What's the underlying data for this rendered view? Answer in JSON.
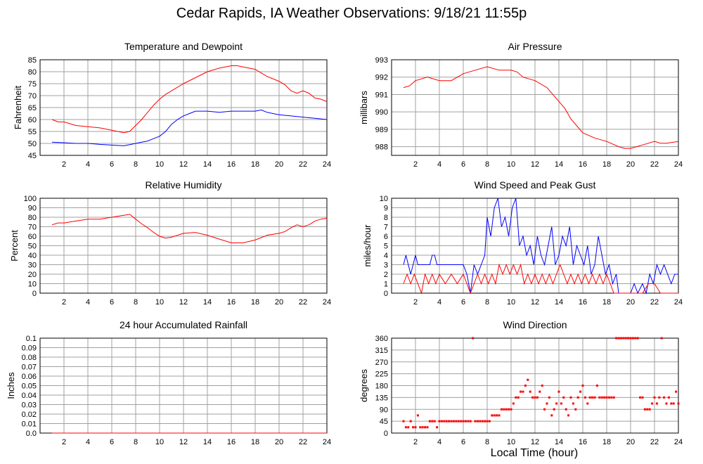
{
  "page": {
    "title": "Cedar Rapids, IA Weather Observations: 9/18/21 11:55p",
    "x_axis_label": "Local Time (hour)"
  },
  "colors": {
    "red": "#ff0000",
    "blue": "#0000ff",
    "grid": "#a0a0a0"
  },
  "chart_data": [
    {
      "id": "temp",
      "type": "line",
      "title": "Temperature and Dewpoint",
      "ylabel": "Fahrenheit",
      "xlim": [
        0,
        24
      ],
      "ylim": [
        45,
        85
      ],
      "xticks": [
        2,
        4,
        6,
        8,
        10,
        12,
        14,
        16,
        18,
        20,
        22,
        24
      ],
      "yticks": [
        45,
        50,
        55,
        60,
        65,
        70,
        75,
        80,
        85
      ],
      "series": [
        {
          "color": "#ff0000",
          "x": [
            1,
            1.5,
            2,
            3,
            4,
            5,
            6,
            7,
            7.5,
            8,
            8.5,
            9,
            9.5,
            10,
            10.5,
            11,
            12,
            13,
            14,
            15,
            16,
            16.5,
            17,
            18,
            18.5,
            19,
            20,
            20.5,
            21,
            21.5,
            22,
            22.5,
            23,
            23.5,
            24
          ],
          "y": [
            60,
            59,
            59,
            57.5,
            57,
            56.5,
            55.5,
            54.5,
            55,
            57.5,
            60,
            63,
            66,
            68.5,
            70.5,
            72,
            75,
            77.5,
            80,
            81.5,
            82.5,
            82.5,
            82,
            81,
            79.5,
            78,
            76,
            74.5,
            72,
            71,
            72,
            71,
            69,
            68.5,
            67.5
          ]
        },
        {
          "color": "#0000ff",
          "x": [
            1,
            2,
            3,
            4,
            5,
            6,
            7,
            7.5,
            8,
            8.5,
            9,
            9.5,
            10,
            10.5,
            11,
            11.5,
            12,
            12.5,
            13,
            14,
            15,
            16,
            17,
            18,
            18.5,
            19,
            20,
            21,
            22,
            23,
            24
          ],
          "y": [
            50.5,
            50.3,
            50,
            50,
            49.6,
            49.3,
            49,
            49.5,
            50,
            50.5,
            51,
            52,
            53,
            55,
            58,
            60,
            61.5,
            62.5,
            63.5,
            63.5,
            63,
            63.5,
            63.5,
            63.5,
            64,
            63,
            62,
            61.5,
            61,
            60.5,
            60
          ]
        }
      ]
    },
    {
      "id": "pressure",
      "type": "line",
      "title": "Air Pressure",
      "ylabel": "millibars",
      "xlim": [
        0,
        24
      ],
      "ylim": [
        987.5,
        993
      ],
      "xticks": [
        2,
        4,
        6,
        8,
        10,
        12,
        14,
        16,
        18,
        20,
        22,
        24
      ],
      "yticks": [
        988,
        989,
        990,
        991,
        992,
        993
      ],
      "series": [
        {
          "color": "#ff0000",
          "x": [
            1,
            1.5,
            2,
            3,
            4,
            5,
            6,
            7,
            8,
            9,
            10,
            10.5,
            11,
            12,
            13,
            14,
            14.5,
            15,
            15.5,
            16,
            17,
            18,
            19,
            19.5,
            20,
            20.5,
            21,
            22,
            22.5,
            23,
            24
          ],
          "y": [
            991.4,
            991.5,
            991.8,
            992,
            991.8,
            991.8,
            992.2,
            992.4,
            992.6,
            992.4,
            992.4,
            992.3,
            992,
            991.8,
            991.4,
            990.6,
            990.2,
            989.6,
            989.2,
            988.8,
            988.5,
            988.3,
            988,
            987.9,
            987.9,
            988,
            988.1,
            988.3,
            988.2,
            988.2,
            988.3
          ]
        }
      ]
    },
    {
      "id": "humidity",
      "type": "line",
      "title": "Relative Humidity",
      "ylabel": "Percent",
      "xlim": [
        0,
        24
      ],
      "ylim": [
        0,
        100
      ],
      "xticks": [
        2,
        4,
        6,
        8,
        10,
        12,
        14,
        16,
        18,
        20,
        22,
        24
      ],
      "yticks": [
        0,
        10,
        20,
        30,
        40,
        50,
        60,
        70,
        80,
        90,
        100
      ],
      "series": [
        {
          "color": "#ff0000",
          "x": [
            1,
            1.5,
            2,
            3,
            4,
            5,
            6,
            7,
            7.5,
            8,
            8.5,
            9,
            9.5,
            10,
            10.5,
            11,
            12,
            13,
            14,
            15,
            16,
            17,
            18,
            19,
            20,
            20.5,
            21,
            21.5,
            22,
            22.5,
            23,
            23.5,
            24
          ],
          "y": [
            72,
            74,
            74,
            76,
            78,
            78,
            80,
            82,
            83,
            78,
            73,
            69,
            64,
            60,
            58,
            59,
            63,
            64,
            61,
            57,
            53,
            53,
            56,
            61,
            63,
            65,
            69,
            72,
            70,
            72,
            76,
            78,
            79
          ]
        }
      ]
    },
    {
      "id": "wind",
      "type": "line",
      "title": "Wind Speed and Peak Gust",
      "ylabel": "miles/hour",
      "xlim": [
        0,
        24
      ],
      "ylim": [
        0,
        10
      ],
      "xticks": [
        2,
        4,
        6,
        8,
        10,
        12,
        14,
        16,
        18,
        20,
        22,
        24
      ],
      "yticks": [
        0,
        1,
        2,
        3,
        4,
        5,
        6,
        7,
        8,
        9,
        10
      ],
      "series": [
        {
          "color": "#0000ff",
          "x": [
            1,
            1.2,
            1.4,
            1.6,
            1.8,
            2,
            2.2,
            2.4,
            2.6,
            2.8,
            3,
            3.2,
            3.4,
            3.6,
            3.8,
            4,
            4.5,
            5,
            5.5,
            6,
            6.3,
            6.6,
            6.9,
            7.2,
            7.5,
            7.8,
            8,
            8.3,
            8.6,
            8.9,
            9.2,
            9.5,
            9.8,
            10.1,
            10.4,
            10.7,
            11,
            11.3,
            11.6,
            11.9,
            12.2,
            12.5,
            12.8,
            13.1,
            13.4,
            13.7,
            14,
            14.3,
            14.6,
            14.9,
            15.2,
            15.5,
            15.8,
            16.1,
            16.4,
            16.7,
            17,
            17.3,
            17.6,
            17.9,
            18.2,
            18.5,
            18.8,
            19,
            19.5,
            20,
            20.3,
            20.6,
            21,
            21.3,
            21.6,
            21.9,
            22.2,
            22.5,
            22.8,
            23.1,
            23.4,
            23.7,
            24
          ],
          "y": [
            3,
            4,
            3,
            2,
            3,
            4,
            3,
            3,
            3,
            3,
            3,
            3,
            4,
            4,
            3,
            3,
            3,
            3,
            3,
            3,
            2,
            0,
            3,
            2,
            3,
            4,
            8,
            6,
            9,
            10,
            7,
            8,
            6,
            9,
            10,
            5,
            6,
            4,
            5,
            3,
            6,
            4,
            3,
            5,
            7,
            3,
            4,
            6,
            5,
            7,
            3,
            5,
            4,
            3,
            5,
            2,
            3,
            6,
            4,
            2,
            3,
            1,
            2,
            0,
            0,
            0,
            1,
            0,
            1,
            0,
            2,
            1,
            3,
            2,
            3,
            2,
            1,
            2,
            2
          ]
        },
        {
          "color": "#ff0000",
          "x": [
            1,
            1.3,
            1.6,
            1.9,
            2.2,
            2.5,
            2.8,
            3.1,
            3.4,
            3.7,
            4,
            4.5,
            5,
            5.5,
            6,
            6.3,
            6.6,
            6.9,
            7.2,
            7.5,
            7.8,
            8.1,
            8.4,
            8.7,
            9,
            9.3,
            9.6,
            9.9,
            10.2,
            10.5,
            10.8,
            11.1,
            11.4,
            11.7,
            12,
            12.3,
            12.6,
            12.9,
            13.2,
            13.5,
            13.8,
            14.1,
            14.4,
            14.7,
            15,
            15.3,
            15.6,
            15.9,
            16.2,
            16.5,
            16.8,
            17.1,
            17.4,
            17.7,
            18,
            18.3,
            18.6,
            19,
            20,
            21,
            21.5,
            22,
            22.5,
            23,
            24
          ],
          "y": [
            1,
            2,
            1,
            2,
            1,
            0,
            2,
            1,
            2,
            1,
            2,
            1,
            2,
            1,
            2,
            1,
            0,
            1,
            2,
            1,
            2,
            1,
            2,
            1,
            3,
            2,
            3,
            2,
            3,
            2,
            3,
            1,
            2,
            1,
            2,
            1,
            2,
            1,
            2,
            1,
            2,
            3,
            2,
            1,
            2,
            1,
            2,
            1,
            2,
            1,
            2,
            1,
            2,
            1,
            2,
            1,
            0,
            0,
            0,
            0,
            1,
            1,
            0,
            0,
            0
          ]
        }
      ]
    },
    {
      "id": "rain",
      "type": "line",
      "title": "24 hour Accumulated Rainfall",
      "ylabel": "Inches",
      "xlim": [
        0,
        24
      ],
      "ylim": [
        0,
        0.1
      ],
      "xticks": [
        2,
        4,
        6,
        8,
        10,
        12,
        14,
        16,
        18,
        20,
        22,
        24
      ],
      "yticks": [
        0.0,
        0.01,
        0.02,
        0.03,
        0.04,
        0.05,
        0.06,
        0.07,
        0.08,
        0.09,
        0.1
      ],
      "yticklabels": [
        "0.0",
        "0.01",
        "0.02",
        "0.03",
        "0.04",
        "0.05",
        "0.06",
        "0.07",
        "0.08",
        "0.09",
        "0.1"
      ],
      "series": [
        {
          "color": "#ff0000",
          "x": [
            1,
            24
          ],
          "y": [
            0,
            0
          ]
        }
      ]
    },
    {
      "id": "direction",
      "type": "scatter",
      "title": "Wind Direction",
      "ylabel": "degrees",
      "xlim": [
        0,
        24
      ],
      "ylim": [
        0,
        360
      ],
      "xticks": [
        2,
        4,
        6,
        8,
        10,
        12,
        14,
        16,
        18,
        20,
        22,
        24
      ],
      "yticks": [
        0,
        45,
        90,
        135,
        180,
        225,
        270,
        315,
        360
      ],
      "series": [
        {
          "color": "#ff0000",
          "x": [
            1,
            1.2,
            1.4,
            1.6,
            1.8,
            2,
            2.2,
            2.4,
            2.6,
            2.8,
            3,
            3.2,
            3.4,
            3.6,
            3.8,
            4,
            4.2,
            4.4,
            4.6,
            4.8,
            5,
            5.2,
            5.4,
            5.6,
            5.8,
            6,
            6.2,
            6.4,
            6.6,
            6.8,
            7,
            7.2,
            7.4,
            7.6,
            7.8,
            8,
            8.2,
            8.4,
            8.6,
            8.8,
            9,
            9.2,
            9.4,
            9.6,
            9.8,
            10,
            10.2,
            10.4,
            10.6,
            10.8,
            11,
            11.2,
            11.4,
            11.6,
            11.8,
            12,
            12.2,
            12.4,
            12.6,
            12.8,
            13,
            13.2,
            13.4,
            13.6,
            13.8,
            14,
            14.2,
            14.4,
            14.6,
            14.8,
            15,
            15.2,
            15.4,
            15.6,
            15.8,
            16,
            16.2,
            16.4,
            16.6,
            16.8,
            17,
            17.2,
            17.4,
            17.6,
            17.8,
            18,
            18.2,
            18.4,
            18.6,
            18.8,
            19,
            19.2,
            19.4,
            19.6,
            19.8,
            20,
            20.2,
            20.4,
            20.6,
            20.8,
            21,
            21.2,
            21.4,
            21.6,
            21.8,
            22,
            22.2,
            22.4,
            22.6,
            22.8,
            23,
            23.2,
            23.4,
            23.6,
            23.8,
            24
          ],
          "y": [
            45,
            22,
            22,
            45,
            22,
            22,
            67,
            22,
            22,
            22,
            22,
            45,
            45,
            45,
            22,
            45,
            45,
            45,
            45,
            45,
            45,
            45,
            45,
            45,
            45,
            45,
            45,
            45,
            45,
            360,
            45,
            45,
            45,
            45,
            45,
            45,
            45,
            67,
            67,
            67,
            67,
            90,
            90,
            90,
            90,
            90,
            112,
            135,
            135,
            157,
            157,
            180,
            202,
            157,
            135,
            135,
            135,
            157,
            180,
            90,
            112,
            135,
            67,
            90,
            112,
            157,
            112,
            135,
            90,
            67,
            135,
            112,
            90,
            135,
            157,
            180,
            135,
            112,
            135,
            135,
            135,
            180,
            135,
            135,
            135,
            135,
            135,
            135,
            135,
            360,
            360,
            360,
            360,
            360,
            360,
            360,
            360,
            360,
            360,
            135,
            135,
            90,
            90,
            90,
            112,
            135,
            112,
            135,
            360,
            135,
            112,
            135,
            112,
            112,
            157,
            112
          ]
        }
      ]
    }
  ]
}
